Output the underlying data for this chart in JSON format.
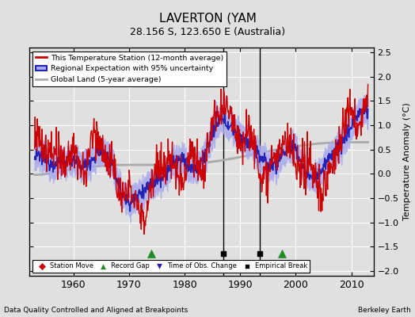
{
  "title": "LAVERTON (YAM",
  "subtitle": "28.156 S, 123.650 E (Australia)",
  "footer_left": "Data Quality Controlled and Aligned at Breakpoints",
  "footer_right": "Berkeley Earth",
  "ylabel": "Temperature Anomaly (°C)",
  "ylim": [
    -2.1,
    2.6
  ],
  "xlim": [
    1952,
    2014
  ],
  "yticks": [
    -2,
    -1.5,
    -1,
    -0.5,
    0,
    0.5,
    1,
    1.5,
    2,
    2.5
  ],
  "xticks": [
    1960,
    1970,
    1980,
    1990,
    2000,
    2010
  ],
  "bg_color": "#e0e0e0",
  "grid_color": "#ffffff",
  "station_color": "#cc0000",
  "regional_color": "#2222bb",
  "regional_fill": "#aaaaee",
  "global_color": "#aaaaaa",
  "record_gaps": [
    1974.0,
    1997.5
  ],
  "obs_changes": [],
  "emp_breaks": [
    1987.0,
    1993.5
  ],
  "obs_triangle_down": [
    1974.0,
    1997.5
  ],
  "marker_y": -1.65
}
